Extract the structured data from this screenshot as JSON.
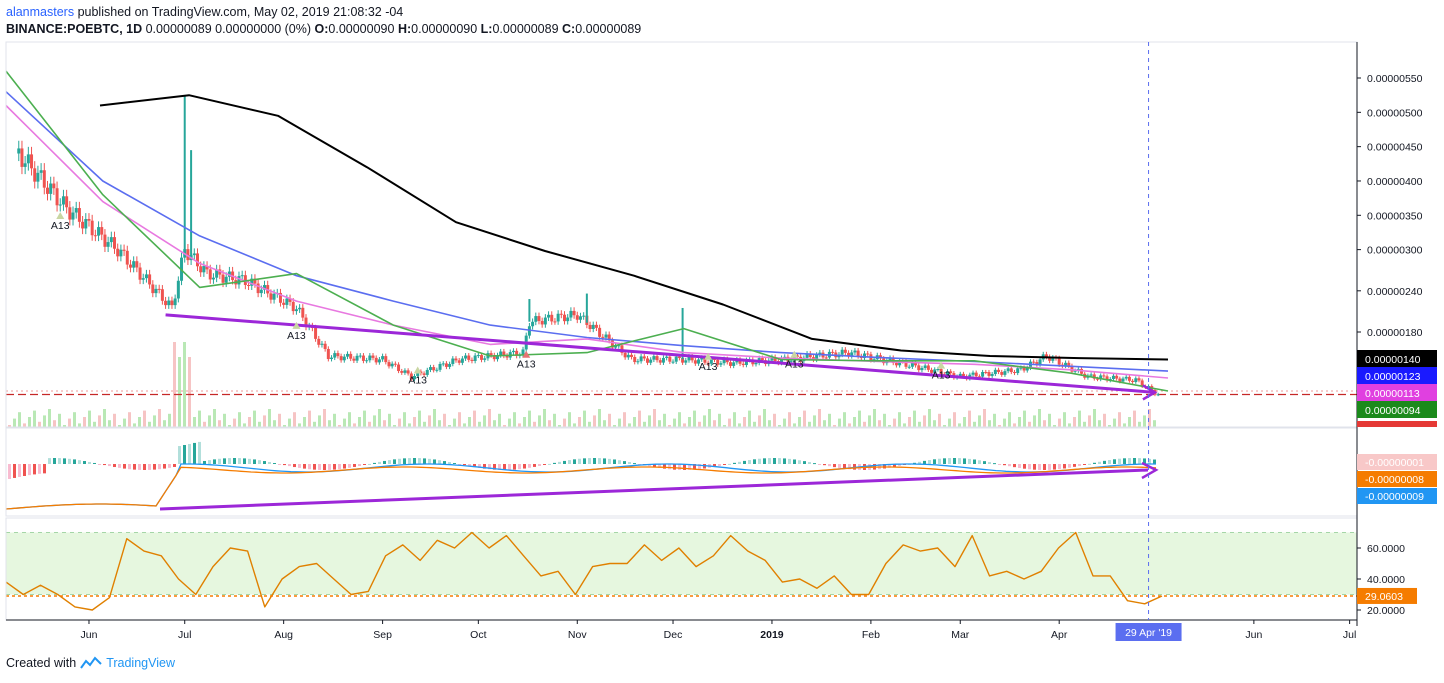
{
  "header": {
    "author": "alanmasters",
    "published": "published on TradingView.com, May 02, 2019 21:08:32 -04",
    "symbol_line": "BINANCE:POEBTC, 1D",
    "change": "0.00000089 0.00000000 (0%)",
    "ohlc": [
      {
        "k": "O:",
        "v": "0.00000090"
      },
      {
        "k": "H:",
        "v": "0.00000090"
      },
      {
        "k": "L:",
        "v": "0.00000089"
      },
      {
        "k": "C:",
        "v": "0.00000089"
      }
    ]
  },
  "footer": {
    "created_with": "Created with",
    "brand": "TradingView"
  },
  "colors": {
    "up": "#26a69a",
    "down": "#ef5350",
    "ma_fast": "#4caf50",
    "ma_pink": "#e879e0",
    "ma_blue": "#5b6ef0",
    "ma_black": "#000000",
    "trend": "#9c27d8",
    "macd": "#2196f3",
    "signal": "#f57c00",
    "rsi": "#e08000",
    "rsi_zone": "#e6f7df"
  },
  "chart_data": [
    {
      "type": "candlestick",
      "title": "BINANCE:POEBTC, 1D",
      "x_labels": [
        "Jun",
        "Jul",
        "Aug",
        "Sep",
        "Oct",
        "Nov",
        "Dec",
        "2019",
        "Feb",
        "Mar",
        "Apr",
        "29 Apr '19",
        "Jun",
        "Jul"
      ],
      "y_ticks": [
        "0.00000550",
        "0.00000500",
        "0.00000450",
        "0.00000400",
        "0.00000350",
        "0.00000300",
        "0.00000240",
        "0.00000180"
      ],
      "ylim": [
        5.5e-07,
        5.8e-06
      ],
      "close_path": [
        [
          "2018-05-10",
          4.4e-06
        ],
        [
          "2018-05-25",
          3.6e-06
        ],
        [
          "2018-06-10",
          3e-06
        ],
        [
          "2018-06-27",
          2.15e-06
        ],
        [
          "2018-07-01",
          3e-06
        ],
        [
          "2018-07-08",
          2.65e-06
        ],
        [
          "2018-07-20",
          2.55e-06
        ],
        [
          "2018-08-05",
          2.15e-06
        ],
        [
          "2018-08-15",
          1.45e-06
        ],
        [
          "2018-09-01",
          1.4e-06
        ],
        [
          "2018-09-10",
          1.15e-06
        ],
        [
          "2018-09-25",
          1.4e-06
        ],
        [
          "2018-10-15",
          1.5e-06
        ],
        [
          "2018-10-17",
          1.95e-06
        ],
        [
          "2018-11-01",
          2.05e-06
        ],
        [
          "2018-11-18",
          1.4e-06
        ],
        [
          "2018-12-04",
          1.4e-06
        ],
        [
          "2018-12-20",
          1.35e-06
        ],
        [
          "2019-01-05",
          1.4e-06
        ],
        [
          "2019-01-25",
          1.5e-06
        ],
        [
          "2019-02-15",
          1.3e-06
        ],
        [
          "2019-03-01",
          1.15e-06
        ],
        [
          "2019-03-20",
          1.25e-06
        ],
        [
          "2019-03-28",
          1.45e-06
        ],
        [
          "2019-04-10",
          1.15e-06
        ],
        [
          "2019-04-25",
          1.1e-06
        ],
        [
          "2019-05-02",
          8.9e-07
        ]
      ],
      "spikes": [
        {
          "date": "2018-07-01",
          "high": 5.25e-06
        },
        {
          "date": "2018-07-03",
          "high": 4.45e-06
        },
        {
          "date": "2018-10-17",
          "high": 2.28e-06
        },
        {
          "date": "2018-11-04",
          "high": 2.36e-06
        },
        {
          "date": "2018-12-04",
          "high": 2.15e-06
        }
      ],
      "series": [
        {
          "name": "MA black",
          "values": [
            5.1e-06,
            5.25e-06,
            4.95e-06,
            4.2e-06,
            3.4e-06,
            2.98e-06,
            2.62e-06,
            2.2e-06,
            1.7e-06,
            1.53e-06,
            1.45e-06,
            1.42e-06,
            1.4e-06
          ]
        },
        {
          "name": "MA blue",
          "values": [
            5.3e-06,
            4e-06,
            3.2e-06,
            2.62e-06,
            2.25e-06,
            1.9e-06,
            1.72e-06,
            1.6e-06,
            1.5e-06,
            1.43e-06,
            1.37e-06,
            1.3e-06,
            1.23e-06
          ]
        },
        {
          "name": "MA pink",
          "values": [
            5.1e-06,
            3.7e-06,
            2.8e-06,
            2.25e-06,
            1.9e-06,
            1.62e-06,
            1.7e-06,
            1.5e-06,
            1.42e-06,
            1.37e-06,
            1.33e-06,
            1.25e-06,
            1.13e-06
          ]
        },
        {
          "name": "MA green",
          "values": [
            5.6e-06,
            3.8e-06,
            2.45e-06,
            2.65e-06,
            1.9e-06,
            1.45e-06,
            1.5e-06,
            1.85e-06,
            1.4e-06,
            1.38e-06,
            1.38e-06,
            1.2e-06,
            9.4e-07
          ]
        }
      ],
      "trendline": [
        [
          "2018-06-25",
          2.05e-06
        ],
        [
          "2019-05-01",
          9.2e-07
        ]
      ],
      "price_badges": [
        {
          "label": "0.00000140",
          "color": "#000000"
        },
        {
          "label": "0.00000123",
          "color": "#1a1aff"
        },
        {
          "label": "0.00000113",
          "color": "#e040e0"
        },
        {
          "label": "0.00000094",
          "color": "#1b8a1b"
        }
      ],
      "pattern_labels": [
        "A13",
        "A13",
        "A13",
        "A13",
        "A13",
        "A13",
        "A13"
      ]
    },
    {
      "type": "line",
      "title": "MACD",
      "price_badges": [
        {
          "label": "-0.00000001",
          "color": "#f8c8c8",
          "text": "#131722"
        },
        {
          "label": "-0.00000008",
          "color": "#f57c00",
          "text": "#ffffff"
        },
        {
          "label": "-0.00000009",
          "color": "#2196f3",
          "text": "#ffffff"
        }
      ]
    },
    {
      "type": "line",
      "title": "RSI",
      "y_ticks": [
        "60.0000",
        "40.0000",
        "20.0000"
      ],
      "ylim": [
        16,
        80
      ],
      "levels": [
        70,
        30
      ],
      "current_label": "29.0603",
      "values": [
        38,
        30,
        36,
        30,
        22,
        20,
        28,
        66,
        58,
        55,
        40,
        30,
        48,
        60,
        58,
        22,
        40,
        48,
        50,
        40,
        30,
        32,
        55,
        62,
        52,
        65,
        60,
        70,
        60,
        68,
        55,
        42,
        45,
        30,
        48,
        50,
        50,
        62,
        52,
        60,
        48,
        55,
        68,
        58,
        52,
        38,
        40,
        34,
        42,
        30,
        30,
        50,
        62,
        58,
        60,
        48,
        68,
        42,
        45,
        40,
        45,
        60,
        70,
        42,
        42,
        26,
        24,
        29
      ]
    }
  ],
  "labels": {
    "date_badge": "29 Apr '19"
  }
}
